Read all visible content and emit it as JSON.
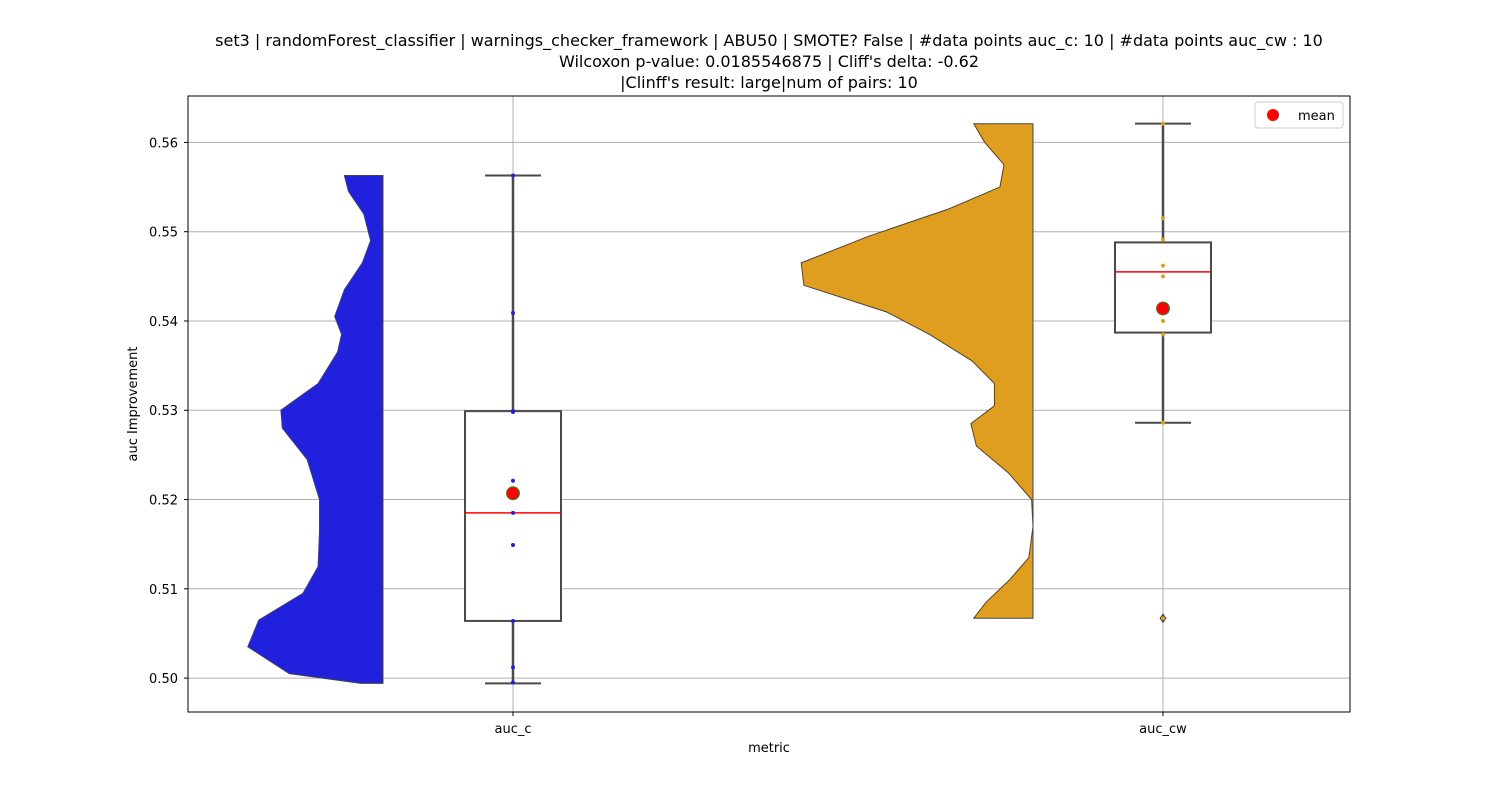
{
  "chart_data": {
    "type": "violin-box",
    "title_lines": [
      "set3 | randomForest_classifier | warnings_checker_framework | ABU50 | SMOTE? False | #data points auc_c: 10 | #data points auc_cw : 10",
      "Wilcoxon p-value: 0.0185546875 | Cliff's delta: -0.62",
      "|Clinff's result: large|num of pairs: 10"
    ],
    "xlabel": "metric",
    "ylabel": "auc Improvement",
    "ylim": [
      0.4962,
      0.5652
    ],
    "yticks": [
      0.5,
      0.51,
      0.52,
      0.53,
      0.54,
      0.55,
      0.56
    ],
    "ytick_labels": [
      "0.50",
      "0.51",
      "0.52",
      "0.53",
      "0.54",
      "0.55",
      "0.56"
    ],
    "categories": [
      "auc_c",
      "auc_cw"
    ],
    "grid": true,
    "legend": {
      "position": "top-right",
      "entries": [
        {
          "label": "mean",
          "color": "#ff0000"
        }
      ]
    },
    "series": [
      {
        "category": "auc_c",
        "color": "#2121dd",
        "points": [
          0.4995,
          0.5012,
          0.5064,
          0.5149,
          0.5185,
          0.5221,
          0.5298,
          0.5299,
          0.5409,
          0.5563
        ],
        "min": 0.4994,
        "q1": 0.5064,
        "median": 0.5185,
        "q3": 0.5299,
        "max": 0.5563,
        "mean": 0.5207,
        "outliers": [],
        "violin_profile": [
          [
            0.4994,
            0.16
          ],
          [
            0.5005,
            0.68
          ],
          [
            0.5035,
            0.98
          ],
          [
            0.5065,
            0.9
          ],
          [
            0.5095,
            0.58
          ],
          [
            0.5125,
            0.47
          ],
          [
            0.5165,
            0.46
          ],
          [
            0.52,
            0.46
          ],
          [
            0.5245,
            0.55
          ],
          [
            0.528,
            0.73
          ],
          [
            0.53,
            0.74
          ],
          [
            0.533,
            0.47
          ],
          [
            0.5365,
            0.33
          ],
          [
            0.5385,
            0.3
          ],
          [
            0.5405,
            0.35
          ],
          [
            0.5435,
            0.28
          ],
          [
            0.5465,
            0.15
          ],
          [
            0.549,
            0.09
          ],
          [
            0.552,
            0.14
          ],
          [
            0.5545,
            0.25
          ],
          [
            0.5563,
            0.28
          ]
        ]
      },
      {
        "category": "auc_cw",
        "color": "#e09e21",
        "points": [
          0.5067,
          0.5286,
          0.5385,
          0.54,
          0.5413,
          0.545,
          0.5462,
          0.5491,
          0.5515,
          0.5621
        ],
        "min": 0.5286,
        "q1": 0.5387,
        "median": 0.5455,
        "q3": 0.5488,
        "max": 0.5621,
        "mean": 0.5414,
        "outliers": [
          0.5067
        ],
        "violin_profile": [
          [
            0.5067,
            0.43
          ],
          [
            0.5085,
            0.34
          ],
          [
            0.511,
            0.17
          ],
          [
            0.5135,
            0.03
          ],
          [
            0.517,
            0.0
          ],
          [
            0.52,
            0.01
          ],
          [
            0.523,
            0.18
          ],
          [
            0.526,
            0.41
          ],
          [
            0.5285,
            0.45
          ],
          [
            0.5305,
            0.28
          ],
          [
            0.533,
            0.28
          ],
          [
            0.5355,
            0.44
          ],
          [
            0.5385,
            0.75
          ],
          [
            0.541,
            1.06
          ],
          [
            0.544,
            1.66
          ],
          [
            0.5465,
            1.68
          ],
          [
            0.5495,
            1.19
          ],
          [
            0.5525,
            0.62
          ],
          [
            0.555,
            0.24
          ],
          [
            0.5575,
            0.21
          ],
          [
            0.56,
            0.35
          ],
          [
            0.5621,
            0.43
          ]
        ]
      }
    ]
  }
}
